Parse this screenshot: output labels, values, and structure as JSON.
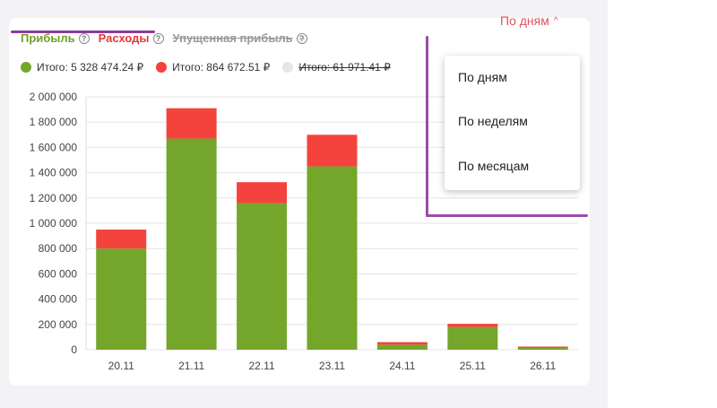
{
  "tabs": [
    {
      "label": "Прибыль",
      "color": "#6fa22a"
    },
    {
      "label": "Расходы",
      "color": "#e03a3a"
    },
    {
      "label": "Упущенная прибыль",
      "color": "#9a9a9a"
    }
  ],
  "help_glyph": "?",
  "legend": [
    {
      "label": "Итого: 5 328 474.24 ₽",
      "color": "#74a62c"
    },
    {
      "label": "Итого: 864 672.51 ₽",
      "color": "#f4433d"
    },
    {
      "label": "Итого: 61 971.41 ₽",
      "color": "#e6e6e6"
    }
  ],
  "period": {
    "selected": "По дням",
    "chevron": "^"
  },
  "dropdown": {
    "options": [
      "По дням",
      "По неделям",
      "По месяцам"
    ]
  },
  "chart_data": {
    "type": "bar",
    "stacked": true,
    "categories": [
      "20.11",
      "21.11",
      "22.11",
      "23.11",
      "24.11",
      "25.11",
      "26.11"
    ],
    "series": [
      {
        "color": "#74a62c",
        "values": [
          800000,
          1670000,
          1160000,
          1450000,
          40000,
          180000,
          15000
        ]
      },
      {
        "color": "#f4433d",
        "values": [
          150000,
          240000,
          165000,
          250000,
          20000,
          25000,
          10000
        ]
      }
    ],
    "yticks": [
      "2 000 000",
      "1 800 000",
      "1 600 000",
      "1 400 000",
      "1 200 000",
      "1 000 000",
      "800 000",
      "600 000",
      "400 000",
      "200 000",
      "0"
    ],
    "ylim": [
      0,
      2000000
    ],
    "grid": true
  }
}
